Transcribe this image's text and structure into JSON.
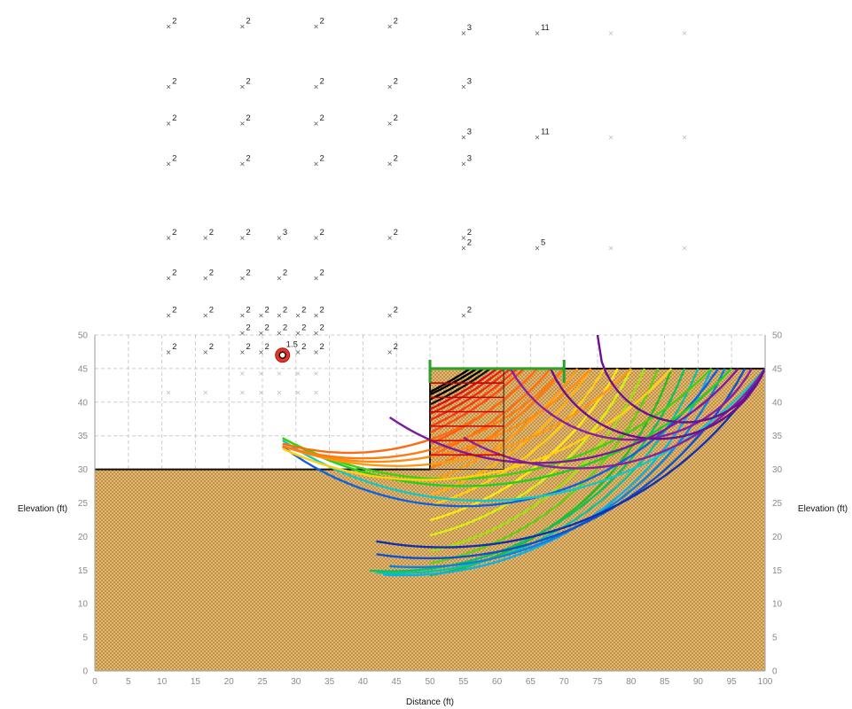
{
  "chart_data": {
    "type": "slope-stability",
    "xlabel": "Distance (ft)",
    "ylabel_left": "Elevation (ft)",
    "ylabel_right": "Elevation (ft)",
    "xlim": [
      0,
      100
    ],
    "ylim": [
      0,
      50
    ],
    "xticks": [
      0,
      5,
      10,
      15,
      20,
      25,
      30,
      35,
      40,
      45,
      50,
      55,
      60,
      65,
      70,
      75,
      80,
      85,
      90,
      95,
      100
    ],
    "yticks": [
      0,
      5,
      10,
      15,
      20,
      25,
      30,
      35,
      40,
      45,
      50
    ],
    "grid": true,
    "colors": {
      "soil": "#e8b86a",
      "soil_dots": "#7a5a2a",
      "wall": "#c8c8c8",
      "load": "#2aa02a",
      "critical": "#e53525",
      "grid": "#cccccc"
    },
    "ground_profile": [
      [
        0,
        30
      ],
      [
        50,
        30
      ],
      [
        50,
        45
      ],
      [
        100,
        45
      ]
    ],
    "wall": {
      "x0": 50,
      "x1": 61,
      "y0": 30,
      "y1": 45
    },
    "surcharge": {
      "x0": 50,
      "x1": 70,
      "y": 45
    },
    "critical_center": {
      "x": 28,
      "y": 47,
      "fs": "1.5"
    },
    "slip_circles": [
      {
        "cx": 20,
        "cy": 100,
        "x0": 50,
        "x1": 56,
        "color": "#000000"
      },
      {
        "cx": 22,
        "cy": 100,
        "x0": 50,
        "x1": 57,
        "color": "#000000"
      },
      {
        "cx": 24,
        "cy": 95,
        "x0": 50,
        "x1": 58,
        "color": "#000000"
      },
      {
        "cx": 25,
        "cy": 92,
        "x0": 50,
        "x1": 59,
        "color": "#111111"
      },
      {
        "cx": 26,
        "cy": 90,
        "x0": 50,
        "x1": 60,
        "color": "#d91010"
      },
      {
        "cx": 27,
        "cy": 88,
        "x0": 50,
        "x1": 61,
        "color": "#e82010"
      },
      {
        "cx": 28,
        "cy": 85,
        "x0": 50,
        "x1": 62,
        "color": "#f02a10"
      },
      {
        "cx": 29,
        "cy": 82,
        "x0": 50,
        "x1": 63,
        "color": "#ff3a10"
      },
      {
        "cx": 30,
        "cy": 80,
        "x0": 50,
        "x1": 64,
        "color": "#ff4a10"
      },
      {
        "cx": 31,
        "cy": 78,
        "x0": 50,
        "x1": 66,
        "color": "#ff5a10"
      },
      {
        "cx": 32,
        "cy": 76,
        "x0": 50,
        "x1": 68,
        "color": "#ff6a10"
      },
      {
        "cx": 33,
        "cy": 74,
        "x0": 50,
        "x1": 70,
        "color": "#ff7a10"
      },
      {
        "cx": 34,
        "cy": 72,
        "x0": 50,
        "x1": 72,
        "color": "#ff9a10"
      },
      {
        "cx": 35,
        "cy": 70,
        "x0": 50,
        "x1": 74,
        "color": "#ffb010"
      },
      {
        "cx": 37,
        "cy": 68,
        "x0": 50,
        "x1": 76,
        "color": "#ffd010"
      },
      {
        "cx": 38,
        "cy": 66,
        "x0": 50,
        "x1": 78,
        "color": "#ffe810"
      },
      {
        "cx": 39,
        "cy": 64,
        "x0": 50,
        "x1": 80,
        "color": "#d8f010"
      },
      {
        "cx": 40,
        "cy": 62,
        "x0": 50,
        "x1": 82,
        "color": "#a0e010"
      },
      {
        "cx": 41,
        "cy": 61,
        "x0": 50,
        "x1": 84,
        "color": "#60d010"
      },
      {
        "cx": 42,
        "cy": 60,
        "x0": 50,
        "x1": 86,
        "color": "#20c020"
      },
      {
        "cx": 44,
        "cy": 62,
        "x0": 41,
        "x1": 88,
        "color": "#10c060"
      },
      {
        "cx": 45,
        "cy": 63,
        "x0": 42,
        "x1": 90,
        "color": "#10c0a0"
      },
      {
        "cx": 46,
        "cy": 64,
        "x0": 43,
        "x1": 92,
        "color": "#10b0e0"
      },
      {
        "cx": 48,
        "cy": 66,
        "x0": 44,
        "x1": 94,
        "color": "#1080e0"
      },
      {
        "cx": 50,
        "cy": 70,
        "x0": 42,
        "x1": 97,
        "color": "#1050d0"
      },
      {
        "cx": 52,
        "cy": 75,
        "x0": 42,
        "x1": 100,
        "color": "#1030b0"
      },
      {
        "cx": 55,
        "cy": 70,
        "x0": 28,
        "x1": 93,
        "color": "#1060e0"
      },
      {
        "cx": 58,
        "cy": 80,
        "x0": 28,
        "x1": 100,
        "color": "#10c8c8"
      },
      {
        "cx": 55,
        "cy": 82,
        "x0": 28,
        "x1": 95,
        "color": "#20d020"
      },
      {
        "cx": 53,
        "cy": 83,
        "x0": 28,
        "x1": 92,
        "color": "#40d010"
      },
      {
        "cx": 49,
        "cy": 78,
        "x0": 28,
        "x1": 86,
        "color": "#ffd010"
      },
      {
        "cx": 45,
        "cy": 80,
        "x0": 28,
        "x1": 80,
        "color": "#ff9a10"
      },
      {
        "cx": 42,
        "cy": 75,
        "x0": 28,
        "x1": 74,
        "color": "#ff8a10"
      },
      {
        "cx": 40,
        "cy": 72,
        "x0": 28,
        "x1": 70,
        "color": "#ff7a10"
      },
      {
        "cx": 38,
        "cy": 70,
        "x0": 28,
        "x1": 66,
        "color": "#ff6a10"
      },
      {
        "cx": 72,
        "cy": 64,
        "x0": 55,
        "x1": 100,
        "color": "#8a20a0"
      },
      {
        "cx": 80,
        "cy": 55,
        "x0": 62,
        "x1": 98,
        "color": "#8a20a0"
      },
      {
        "cx": 84,
        "cy": 52,
        "x0": 68,
        "x1": 100,
        "color": "#6a1090"
      },
      {
        "cx": 88,
        "cy": 50,
        "x0": 75,
        "x1": 100,
        "color": "#6a1090"
      },
      {
        "cx": 66,
        "cy": 70,
        "x0": 44,
        "x1": 96,
        "color": "#7a1aa0"
      }
    ],
    "grid_points": [
      {
        "x": 11,
        "y": 96,
        "fs": "2"
      },
      {
        "x": 22,
        "y": 96,
        "fs": "2"
      },
      {
        "x": 33,
        "y": 96,
        "fs": "2"
      },
      {
        "x": 44,
        "y": 96,
        "fs": "2"
      },
      {
        "x": 55,
        "y": 95,
        "fs": "3"
      },
      {
        "x": 66,
        "y": 95,
        "fs": "11"
      },
      {
        "x": 77,
        "y": 95,
        "fs": ""
      },
      {
        "x": 88,
        "y": 95,
        "fs": ""
      },
      {
        "x": 11,
        "y": 87,
        "fs": "2"
      },
      {
        "x": 22,
        "y": 87,
        "fs": "2"
      },
      {
        "x": 33,
        "y": 87,
        "fs": "2"
      },
      {
        "x": 44,
        "y": 87,
        "fs": "2"
      },
      {
        "x": 55,
        "y": 87,
        "fs": "3"
      },
      {
        "x": 11,
        "y": 81.5,
        "fs": "2"
      },
      {
        "x": 22,
        "y": 81.5,
        "fs": "2"
      },
      {
        "x": 33,
        "y": 81.5,
        "fs": "2"
      },
      {
        "x": 44,
        "y": 81.5,
        "fs": "2"
      },
      {
        "x": 55,
        "y": 79.5,
        "fs": "3"
      },
      {
        "x": 66,
        "y": 79.5,
        "fs": "11"
      },
      {
        "x": 77,
        "y": 79.5,
        "fs": ""
      },
      {
        "x": 88,
        "y": 79.5,
        "fs": ""
      },
      {
        "x": 11,
        "y": 75.5,
        "fs": "2"
      },
      {
        "x": 22,
        "y": 75.5,
        "fs": "2"
      },
      {
        "x": 33,
        "y": 75.5,
        "fs": "2"
      },
      {
        "x": 44,
        "y": 75.5,
        "fs": "2"
      },
      {
        "x": 55,
        "y": 75.5,
        "fs": "3"
      },
      {
        "x": 11,
        "y": 64.5,
        "fs": "2"
      },
      {
        "x": 16.5,
        "y": 64.5,
        "fs": "2"
      },
      {
        "x": 22,
        "y": 64.5,
        "fs": "2"
      },
      {
        "x": 27.5,
        "y": 64.5,
        "fs": "3"
      },
      {
        "x": 33,
        "y": 64.5,
        "fs": "2"
      },
      {
        "x": 44,
        "y": 64.5,
        "fs": "2"
      },
      {
        "x": 55,
        "y": 64.5,
        "fs": "2"
      },
      {
        "x": 55,
        "y": 63,
        "fs": "2"
      },
      {
        "x": 66,
        "y": 63,
        "fs": "5"
      },
      {
        "x": 77,
        "y": 63,
        "fs": ""
      },
      {
        "x": 88,
        "y": 63,
        "fs": ""
      },
      {
        "x": 11,
        "y": 58.5,
        "fs": "2"
      },
      {
        "x": 16.5,
        "y": 58.5,
        "fs": "2"
      },
      {
        "x": 22,
        "y": 58.5,
        "fs": "2"
      },
      {
        "x": 27.5,
        "y": 58.5,
        "fs": "2"
      },
      {
        "x": 33,
        "y": 58.5,
        "fs": "2"
      },
      {
        "x": 11,
        "y": 53,
        "fs": "2"
      },
      {
        "x": 16.5,
        "y": 53,
        "fs": "2"
      },
      {
        "x": 22,
        "y": 53,
        "fs": "2"
      },
      {
        "x": 24.8,
        "y": 53,
        "fs": "2"
      },
      {
        "x": 27.5,
        "y": 53,
        "fs": "2"
      },
      {
        "x": 30.3,
        "y": 53,
        "fs": "2"
      },
      {
        "x": 33,
        "y": 53,
        "fs": "2"
      },
      {
        "x": 44,
        "y": 53,
        "fs": "2"
      },
      {
        "x": 55,
        "y": 53,
        "fs": "2"
      },
      {
        "x": 22,
        "y": 50.3,
        "fs": "2"
      },
      {
        "x": 24.8,
        "y": 50.3,
        "fs": "2"
      },
      {
        "x": 27.5,
        "y": 50.3,
        "fs": "2"
      },
      {
        "x": 30.3,
        "y": 50.3,
        "fs": "2"
      },
      {
        "x": 33,
        "y": 50.3,
        "fs": "2"
      },
      {
        "x": 11,
        "y": 47.5,
        "fs": "2"
      },
      {
        "x": 16.5,
        "y": 47.5,
        "fs": "2"
      },
      {
        "x": 22,
        "y": 47.5,
        "fs": "2"
      },
      {
        "x": 24.8,
        "y": 47.5,
        "fs": "2"
      },
      {
        "x": 30.3,
        "y": 47.5,
        "fs": "2"
      },
      {
        "x": 33,
        "y": 47.5,
        "fs": "2"
      },
      {
        "x": 44,
        "y": 47.5,
        "fs": "2"
      },
      {
        "x": 22,
        "y": 44.3,
        "fs": ""
      },
      {
        "x": 24.8,
        "y": 44.3,
        "fs": ""
      },
      {
        "x": 27.5,
        "y": 44.3,
        "fs": ""
      },
      {
        "x": 30.3,
        "y": 44.3,
        "fs": ""
      },
      {
        "x": 33,
        "y": 44.3,
        "fs": ""
      },
      {
        "x": 11,
        "y": 41.5,
        "fs": ""
      },
      {
        "x": 16.5,
        "y": 41.5,
        "fs": ""
      },
      {
        "x": 22,
        "y": 41.5,
        "fs": ""
      },
      {
        "x": 24.8,
        "y": 41.5,
        "fs": ""
      },
      {
        "x": 27.5,
        "y": 41.5,
        "fs": ""
      },
      {
        "x": 30.3,
        "y": 41.5,
        "fs": ""
      },
      {
        "x": 33,
        "y": 41.5,
        "fs": ""
      }
    ]
  }
}
